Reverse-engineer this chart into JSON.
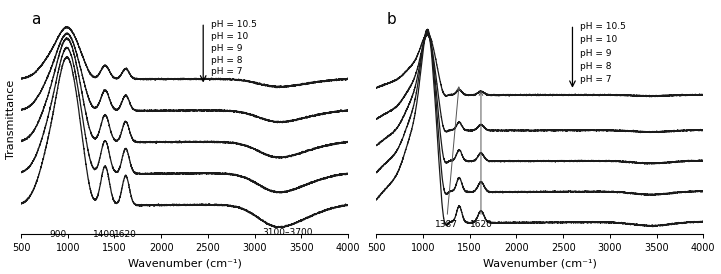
{
  "xlim": [
    500,
    4000
  ],
  "xlabel": "Wavenumber (cm⁻¹)",
  "ylabel": "Transmittance",
  "panel_a_label": "a",
  "panel_b_label": "b",
  "pH_labels": [
    "pH = 10.5",
    "pH = 10",
    "pH = 9",
    "pH = 8",
    "pH = 7"
  ],
  "xticks": [
    500,
    1000,
    1500,
    2000,
    2500,
    3000,
    3500,
    4000
  ],
  "annotations_a": [
    "900",
    "1400",
    "1620",
    "3100–3700"
  ],
  "annotations_b": [
    "1387",
    "1620"
  ],
  "n_spectra": 5,
  "background_color": "#ffffff",
  "line_color": "#1a1a1a",
  "line_width": 0.9,
  "offsets_a": [
    0.0,
    0.75,
    1.5,
    2.25,
    3.0
  ],
  "offsets_b": [
    0.0,
    0.65,
    1.3,
    1.95,
    2.7
  ]
}
